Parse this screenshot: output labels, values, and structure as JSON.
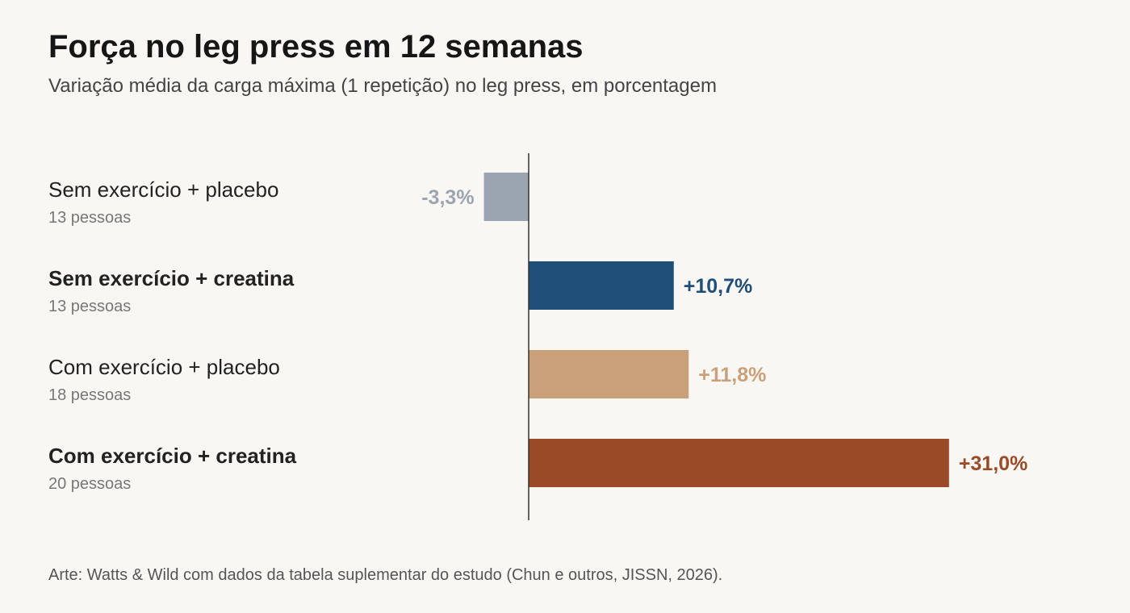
{
  "title": "Força no leg press em 12 semanas",
  "subtitle": "Variação média da carga máxima (1 repetição) no leg press, em porcentagem",
  "footer": "Arte: Watts & Wild com dados da tabela suplementar do estudo (Chun e outros, JISSN, 2026).",
  "chart_data": {
    "type": "bar",
    "orientation": "horizontal",
    "title": "Força no leg press em 12 semanas",
    "subtitle": "Variação média da carga máxima (1 repetição) no leg press, em porcentagem",
    "categories": [
      "Sem exercício + placebo",
      "Sem exercício + creatina",
      "Com exercício + placebo",
      "Com exercício + creatina"
    ],
    "sample_sizes": [
      "13 pessoas",
      "13 pessoas",
      "18 pessoas",
      "20 pessoas"
    ],
    "values": [
      -3.3,
      10.7,
      11.8,
      31.0
    ],
    "value_labels": [
      "-3,3%",
      "+10,7%",
      "+11,8%",
      "+31,0%"
    ],
    "bold_categories": [
      false,
      true,
      false,
      true
    ],
    "colors": [
      "#9aa5b1",
      "#1f4e79",
      "#c9a07a",
      "#9a4a26"
    ],
    "xlabel": "",
    "ylabel": "",
    "grid": false,
    "legend": "none",
    "zero_line": true
  }
}
